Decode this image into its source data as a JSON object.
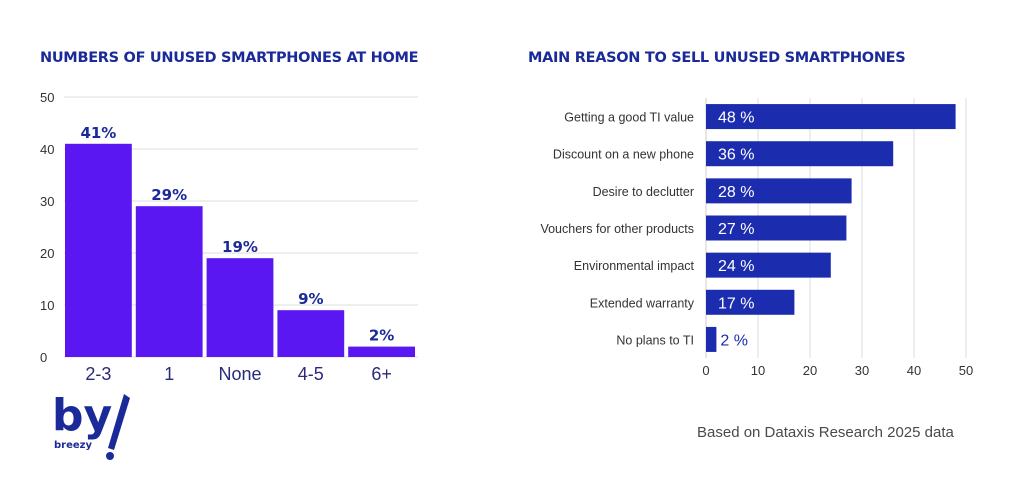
{
  "colors": {
    "left_bar": "#5a17f2",
    "right_bar": "#1c2cae",
    "title": "#1b2a99",
    "logo": "#1b2a99"
  },
  "logo": {
    "text": "breezy"
  },
  "source_note": "Based on Dataxis Research 2025 data",
  "chart_data": [
    {
      "type": "bar",
      "title": "NUMBERS OF UNUSED SMARTPHONES AT HOME",
      "categories": [
        "2-3",
        "1",
        "None",
        "4-5",
        "6+"
      ],
      "values": [
        41,
        29,
        19,
        9,
        2
      ],
      "data_labels": [
        "41%",
        "29%",
        "19%",
        "9%",
        "2%"
      ],
      "ylim": [
        0,
        50
      ],
      "yticks": [
        0,
        10,
        20,
        30,
        40,
        50
      ],
      "grid": true
    },
    {
      "type": "bar",
      "orientation": "horizontal",
      "title": "MAIN REASON TO SELL UNUSED SMARTPHONES",
      "categories": [
        "Getting a good TI value",
        "Discount on a new phone",
        "Desire to declutter",
        "Vouchers for other products",
        "Environmental impact",
        "Extended warranty",
        "No plans to TI"
      ],
      "values": [
        48,
        36,
        28,
        27,
        24,
        17,
        2
      ],
      "data_labels": [
        "48 %",
        "36 %",
        "28 %",
        "27 %",
        "24 %",
        "17 %",
        "2 %"
      ],
      "xlim": [
        0,
        50
      ],
      "xticks": [
        0,
        10,
        20,
        30,
        40,
        50
      ],
      "grid": true
    }
  ]
}
